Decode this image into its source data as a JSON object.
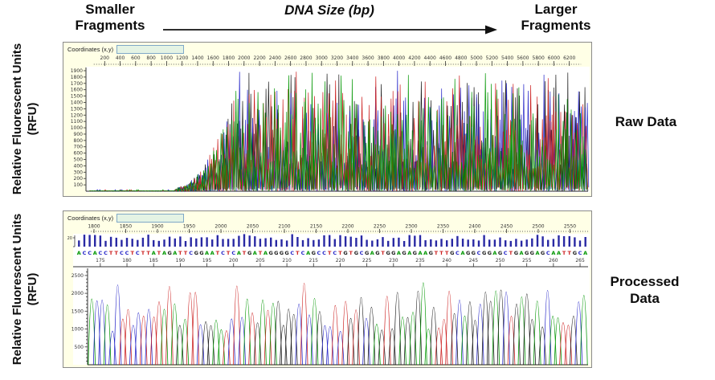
{
  "header": {
    "smaller_fragments": "Smaller Fragments",
    "axis_title": "DNA Size (bp)",
    "larger_fragments": "Larger Fragments"
  },
  "panels": {
    "raw": {
      "side_label": "Raw Data",
      "ylabel": "Relative Fluorescent Units (RFU)",
      "coordinates_label": "Coordinates (x,y)",
      "coordinates_value": ""
    },
    "processed": {
      "side_label": "Processed Data",
      "ylabel": "Relative Fluorescent Units (RFU)",
      "coordinates_label": "Coordinates (x,y)",
      "coordinates_value": ""
    }
  },
  "chart_data": [
    {
      "type": "line",
      "name": "raw_electropherogram",
      "title": "Raw Data",
      "xlabel": "DNA Size (bp)",
      "ylabel": "Relative Fluorescent Units (RFU)",
      "xlim": [
        0,
        6400
      ],
      "ylim": [
        0,
        2000
      ],
      "x_ticks": [
        200,
        400,
        600,
        800,
        1000,
        1200,
        1400,
        1600,
        1800,
        2000,
        2200,
        2400,
        2600,
        2800,
        3000,
        3200,
        3400,
        3600,
        3800,
        4000,
        4200,
        4400,
        4600,
        4800,
        5000,
        5200,
        5400,
        5600,
        5800,
        6000,
        6200
      ],
      "y_ticks": [
        1900,
        1800,
        1700,
        1600,
        1500,
        1400,
        1300,
        1200,
        1100,
        1000,
        900,
        800,
        700,
        600,
        500,
        400,
        300,
        200,
        100
      ],
      "series": [
        {
          "name": "G",
          "color": "#1A1A1A"
        },
        {
          "name": "C",
          "color": "#2525C8"
        },
        {
          "name": "T",
          "color": "#CC2020"
        },
        {
          "name": "A",
          "color": "#009600"
        }
      ],
      "signal_profile": {
        "flat_until_fraction": 0.17,
        "ramp_until_fraction": 0.3,
        "peak_rfu_range": [
          300,
          1900
        ]
      },
      "grid": false,
      "seed": 7
    },
    {
      "type": "line",
      "name": "processed_electropherogram",
      "title": "Processed Data",
      "ylabel": "Relative Fluorescent Units (RFU)",
      "ylim": [
        0,
        2700
      ],
      "scan_ticks": [
        1800,
        1850,
        1900,
        1950,
        2000,
        2050,
        2100,
        2150,
        2200,
        2250,
        2300,
        2350,
        2400,
        2450,
        2500,
        2550
      ],
      "y_ticks": [
        2500,
        2000,
        1500,
        1000,
        500
      ],
      "sequence": "ACCACCTTCCTCTTATAGATTCGGAATCTCATGATAGGGGCTCAGCCTCTGTGCGAGTGGAGAGAAGTTTGCAGGCGGAGCTGAGGAGCAATTGCA",
      "first_position": 171,
      "position_ticks": [
        175,
        180,
        185,
        190,
        195,
        200,
        205,
        210,
        215,
        220,
        225,
        230,
        235,
        240,
        245,
        250,
        255,
        260,
        265
      ],
      "quality_axis_label": "20",
      "base_colors": {
        "A": "#009600",
        "C": "#2525C8",
        "G": "#1A1A1A",
        "T": "#CC2020"
      },
      "basecall_bar_color": "#2929A3",
      "peak_rfu_range": [
        800,
        2150
      ],
      "grid": false,
      "seed": 11
    }
  ],
  "colors": {
    "panel_background": "#FFFFE6",
    "plot_background": "#FFFFFF",
    "panel_border": "#8A8A8A",
    "axis_text": "#333333",
    "header_text": "#0D0D0D",
    "coordinates_box_border": "#7FA8C8",
    "coordinates_box_fill": "#E4F3E4"
  }
}
